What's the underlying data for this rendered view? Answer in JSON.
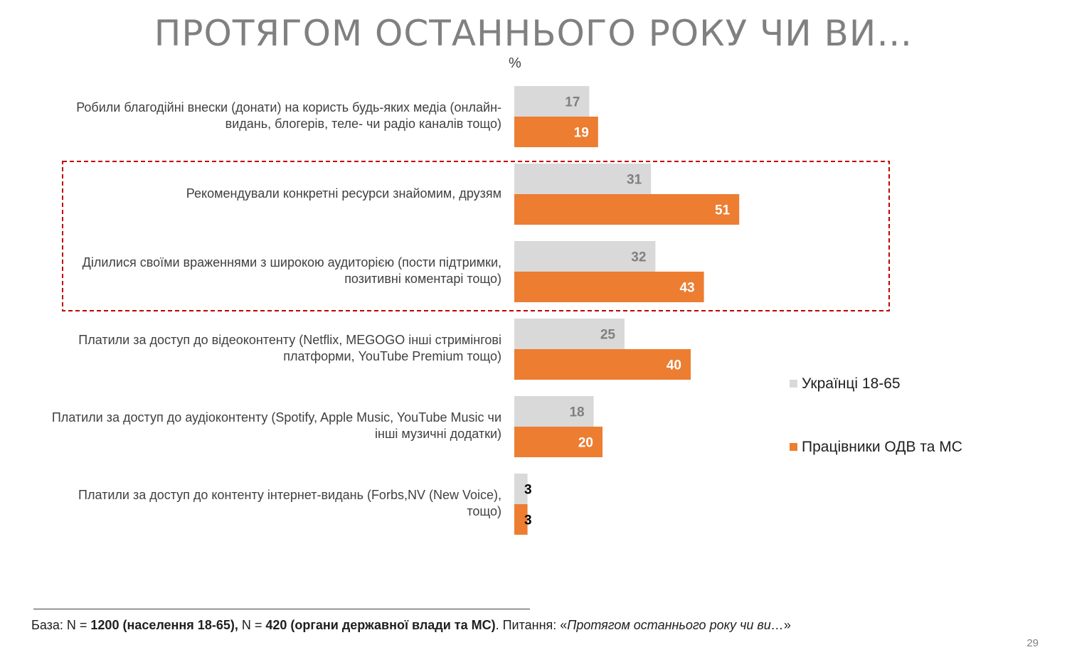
{
  "page": {
    "title": "ПРОТЯГОМ ОСТАННЬОГО РОКУ ЧИ ВИ…",
    "unit": "%",
    "page_number": "29"
  },
  "note": {
    "t1": "База: N = ",
    "b1": "1200 (населення 18-65),",
    "t2": " N = ",
    "b2": "420 (органи державної влади та МС)",
    "t3": ". Питання: «",
    "i1": "Протягом останнього року чи ви…",
    "t4": "»"
  },
  "chart_data": {
    "type": "bar",
    "orientation": "horizontal",
    "unit": "%",
    "categories": [
      "Робили благодійні внески (донати) на користь будь-яких медіа (онлайн-видань, блогерів, теле- чи радіо каналів тощо)",
      "Рекомендували конкретні ресурси знайомим, друзям",
      "Ділилися своїми враженнями з широкою аудиторією (пости підтримки, позитивні коментарі тощо)",
      "Платили за доступ до відеоконтенту (Netflix, MEGOGO інші стримінгові платформи, YouTube Premium тощо)",
      "Платили за доступ до аудіоконтенту (Spotify, Apple Music, YouTube Music чи інші музичні додатки)",
      "Платили за доступ до контенту інтернет-видань (Forbs,NV (New Voice), тощо)"
    ],
    "series": [
      {
        "name": "Українці 18-65",
        "color": "#d9d9d9",
        "label_color": "#7f7f7f",
        "values": [
          17,
          31,
          32,
          25,
          18,
          3
        ]
      },
      {
        "name": "Працівники ОДВ та МС",
        "color": "#ed7d31",
        "label_color": "#ffffff",
        "values": [
          19,
          51,
          43,
          40,
          20,
          3
        ]
      }
    ],
    "small_value_label_color": "#000000",
    "highlighted_categories": [
      1,
      2
    ],
    "highlight_color": "#c00000",
    "legend_position": "right",
    "grid": false
  }
}
